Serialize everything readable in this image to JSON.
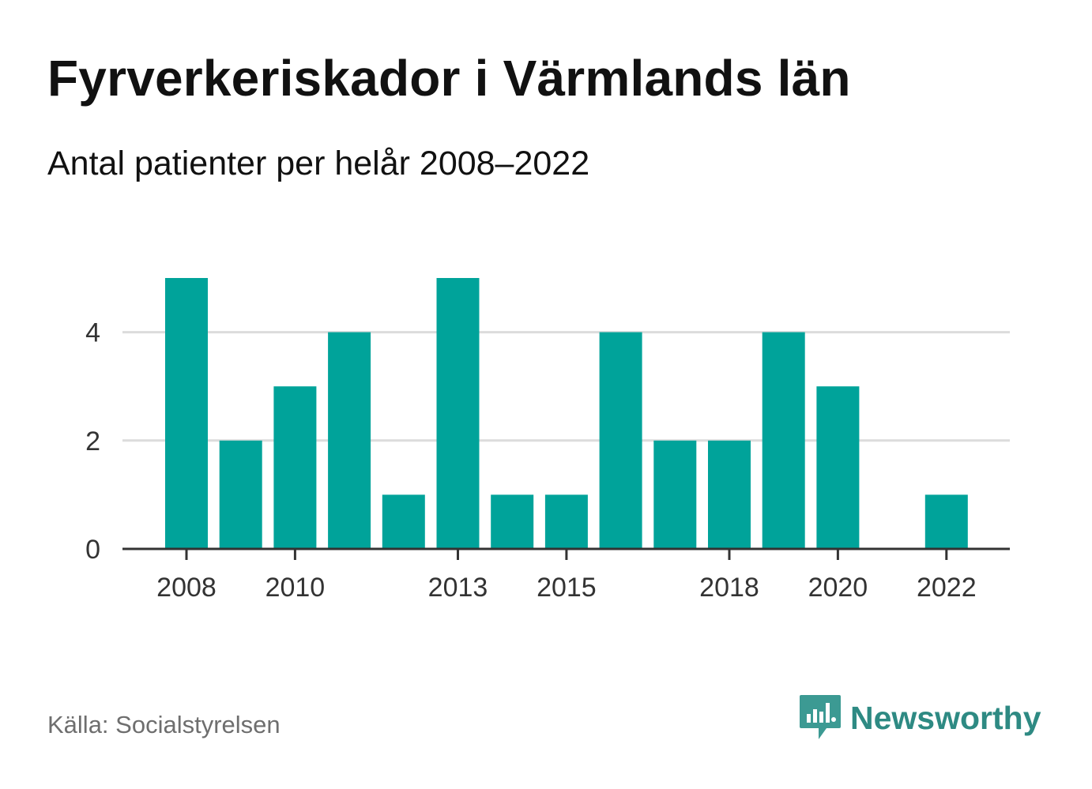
{
  "header": {
    "title": "Fyrverkeriskador i Värmlands län",
    "subtitle": "Antal patienter per helår 2008–2022"
  },
  "footer": {
    "source": "Källa: Socialstyrelsen",
    "brand_name": "Newsworthy",
    "brand_icon": "bar-chart-speech-bubble-icon"
  },
  "colors": {
    "bar": "#00a39a",
    "brand": "#2e8a83",
    "logo": "#3c9a93",
    "grid": "#dcdcdc",
    "axis": "#333333",
    "tick_text": "#333333"
  },
  "chart_data": {
    "type": "bar",
    "categories": [
      "2008",
      "2009",
      "2010",
      "2011",
      "2012",
      "2013",
      "2014",
      "2015",
      "2016",
      "2017",
      "2018",
      "2019",
      "2020",
      "2021",
      "2022"
    ],
    "values": [
      5,
      2,
      3,
      4,
      1,
      5,
      1,
      1,
      4,
      2,
      2,
      4,
      3,
      0,
      1
    ],
    "x_tick_labels": [
      "2008",
      "2010",
      "2013",
      "2015",
      "2018",
      "2020",
      "2022"
    ],
    "y_ticks": [
      0,
      2,
      4
    ],
    "ylim": [
      0,
      5
    ],
    "grid": true,
    "title": "Fyrverkeriskador i Värmlands län",
    "subtitle": "Antal patienter per helår 2008–2022",
    "xlabel": "",
    "ylabel": ""
  }
}
